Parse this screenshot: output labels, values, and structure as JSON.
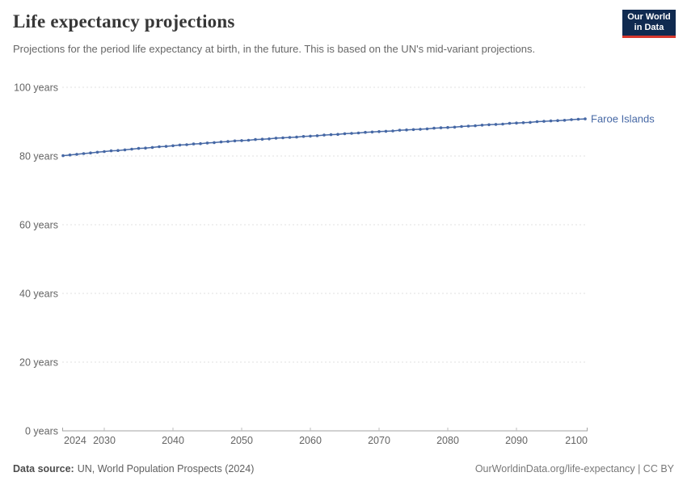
{
  "header": {
    "title": "Life expectancy projections",
    "subtitle": "Projections for the period life expectancy at birth, in the future. This is based on the UN's mid-variant projections.",
    "logo": {
      "line1": "Our World",
      "line2": "in Data",
      "bg_color": "#102a50",
      "stripe_color": "#d7372d"
    }
  },
  "chart_data": {
    "type": "line",
    "title": "Life expectancy projections",
    "xlabel": "",
    "ylabel": "",
    "xlim": [
      2024,
      2100
    ],
    "ylim": [
      0,
      100
    ],
    "grid": "horizontal-dashed",
    "legend_position": "end-of-line-label",
    "x_ticks": [
      2024,
      2030,
      2040,
      2050,
      2060,
      2070,
      2080,
      2090,
      2100
    ],
    "y_ticks": [
      0,
      20,
      40,
      60,
      80,
      100
    ],
    "y_tick_suffix": " years",
    "x": [
      2024,
      2025,
      2026,
      2027,
      2028,
      2029,
      2030,
      2031,
      2032,
      2033,
      2034,
      2035,
      2036,
      2037,
      2038,
      2039,
      2040,
      2041,
      2042,
      2043,
      2044,
      2045,
      2046,
      2047,
      2048,
      2049,
      2050,
      2051,
      2052,
      2053,
      2054,
      2055,
      2056,
      2057,
      2058,
      2059,
      2060,
      2061,
      2062,
      2063,
      2064,
      2065,
      2066,
      2067,
      2068,
      2069,
      2070,
      2071,
      2072,
      2073,
      2074,
      2075,
      2076,
      2077,
      2078,
      2079,
      2080,
      2081,
      2082,
      2083,
      2084,
      2085,
      2086,
      2087,
      2088,
      2089,
      2090,
      2091,
      2092,
      2093,
      2094,
      2095,
      2096,
      2097,
      2098,
      2099,
      2100
    ],
    "series": [
      {
        "name": "Faroe Islands",
        "color": "#4668a5",
        "values": [
          80.1,
          80.3,
          80.5,
          80.7,
          80.9,
          81.1,
          81.3,
          81.5,
          81.6,
          81.8,
          82.0,
          82.2,
          82.3,
          82.5,
          82.7,
          82.8,
          83.0,
          83.2,
          83.3,
          83.5,
          83.6,
          83.8,
          83.9,
          84.1,
          84.2,
          84.4,
          84.5,
          84.6,
          84.8,
          84.9,
          85.0,
          85.2,
          85.3,
          85.4,
          85.5,
          85.7,
          85.8,
          85.9,
          86.1,
          86.2,
          86.3,
          86.5,
          86.6,
          86.7,
          86.9,
          87.0,
          87.1,
          87.2,
          87.3,
          87.5,
          87.6,
          87.7,
          87.8,
          87.9,
          88.1,
          88.2,
          88.3,
          88.4,
          88.6,
          88.7,
          88.8,
          89.0,
          89.1,
          89.2,
          89.3,
          89.5,
          89.6,
          89.7,
          89.8,
          90.0,
          90.1,
          90.2,
          90.3,
          90.4,
          90.6,
          90.7,
          90.8
        ]
      }
    ]
  },
  "footer": {
    "source_label": "Data source:",
    "source_text": "UN, World Population Prospects (2024)",
    "credit": "OurWorldinData.org/life-expectancy | CC BY"
  }
}
